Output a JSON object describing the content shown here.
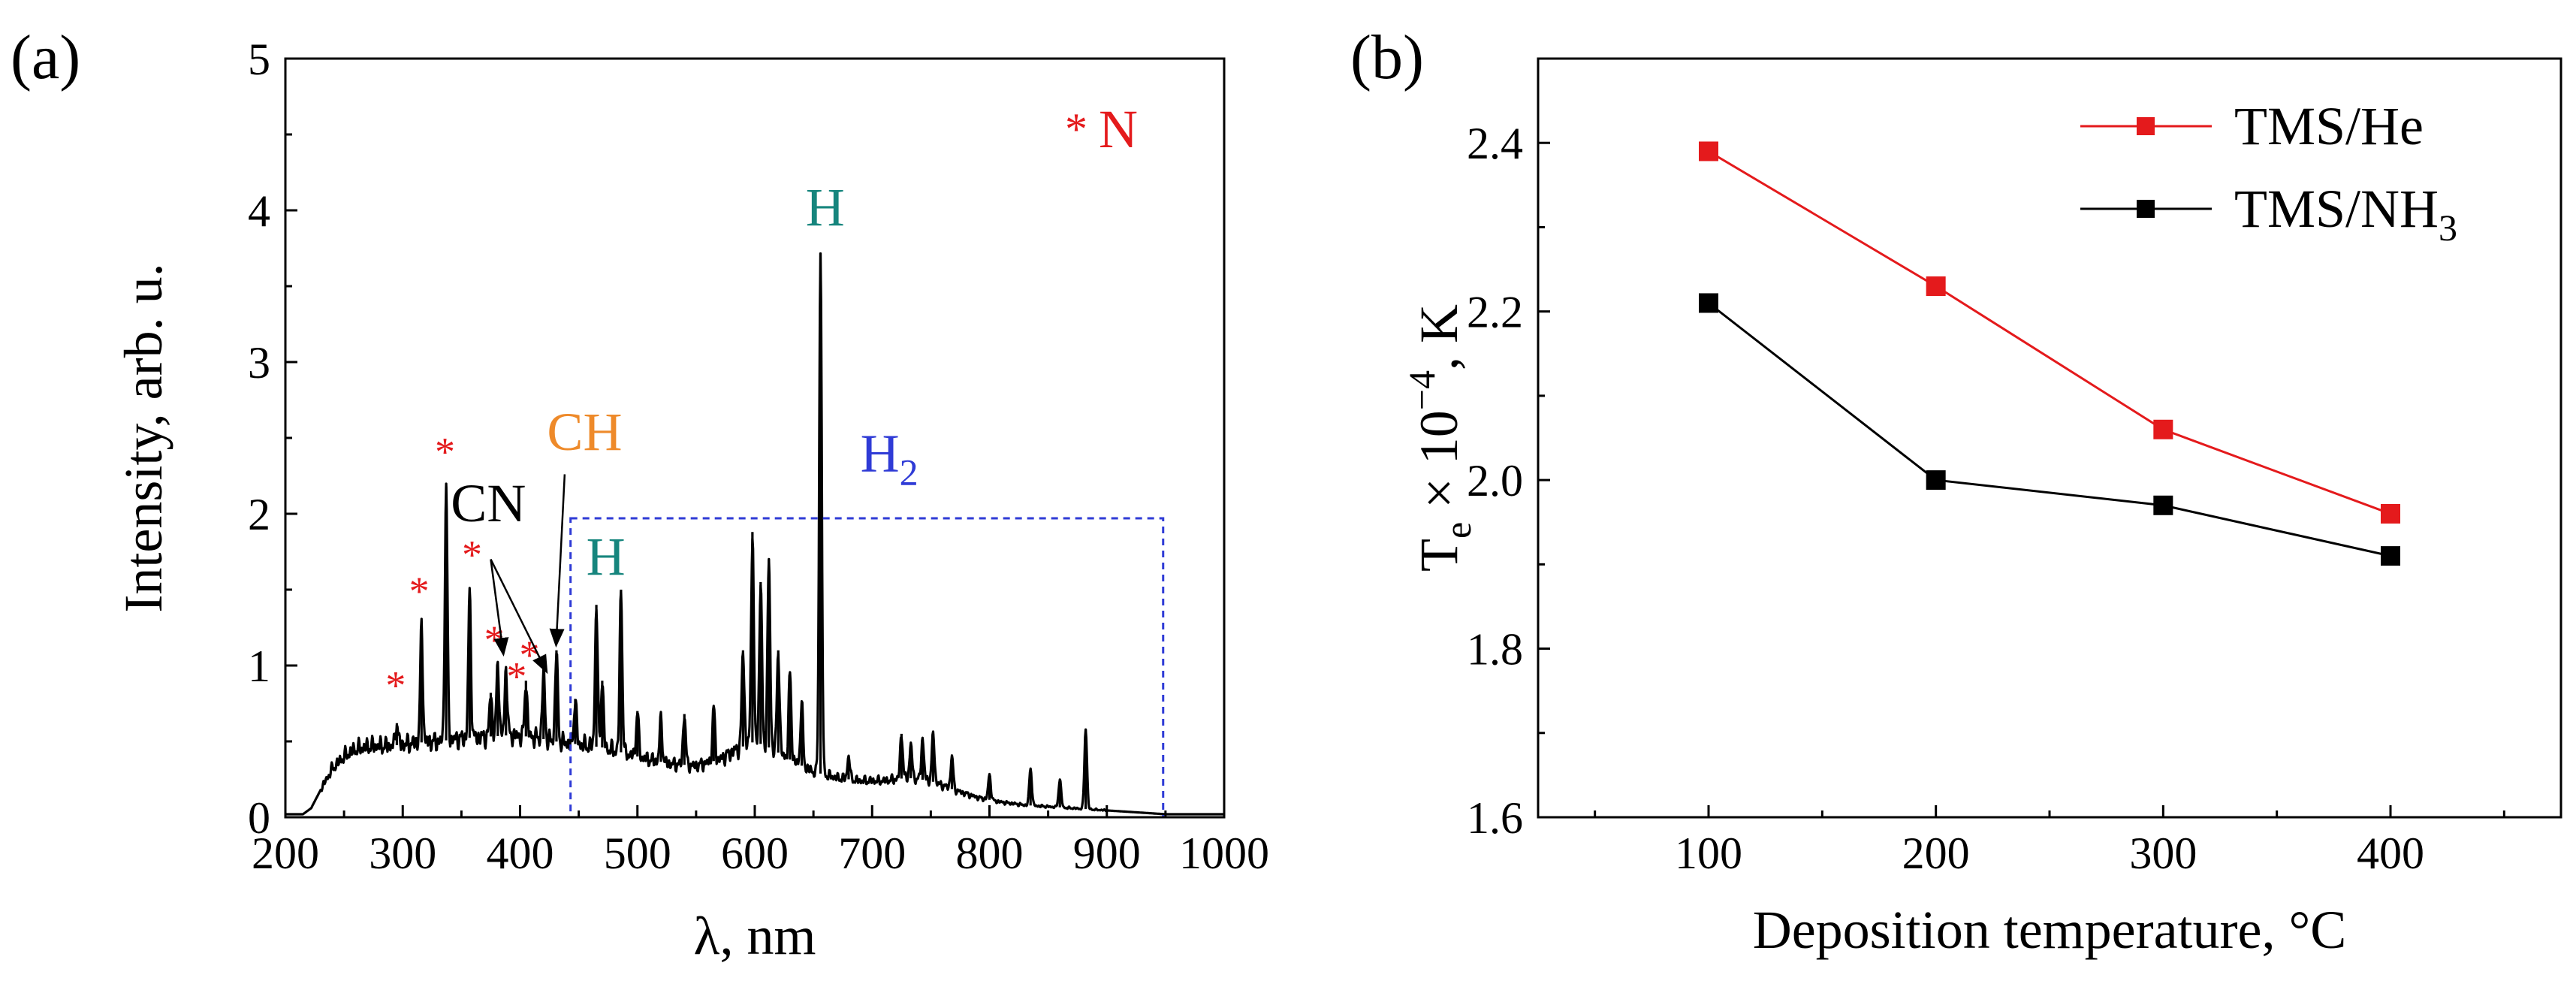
{
  "chart_data": [
    {
      "panel": "(a)",
      "type": "line",
      "xlabel": "λ, nm",
      "ylabel": "Intensity, arb. u.",
      "xlim": [
        200,
        1000
      ],
      "ylim": [
        0,
        5
      ],
      "xticks": [
        "200",
        "300",
        "400",
        "500",
        "600",
        "700",
        "800",
        "900",
        "1000"
      ],
      "yticks": [
        "0",
        "1",
        "2",
        "3",
        "4",
        "5"
      ],
      "legend_note": {
        "star": "*",
        "species": "N"
      },
      "region_box": {
        "x_range": [
          443,
          948
        ],
        "y_range": [
          0,
          1.97
        ],
        "label": "H",
        "label_sub": "2"
      },
      "baseline": [
        [
          200,
          0.02
        ],
        [
          215,
          0.02
        ],
        [
          222,
          0.06
        ],
        [
          230,
          0.18
        ],
        [
          240,
          0.32
        ],
        [
          250,
          0.4
        ],
        [
          260,
          0.45
        ],
        [
          275,
          0.47
        ],
        [
          290,
          0.47
        ],
        [
          310,
          0.49
        ],
        [
          330,
          0.5
        ],
        [
          350,
          0.52
        ],
        [
          370,
          0.53
        ],
        [
          390,
          0.54
        ],
        [
          410,
          0.53
        ],
        [
          430,
          0.5
        ],
        [
          450,
          0.48
        ],
        [
          470,
          0.46
        ],
        [
          490,
          0.42
        ],
        [
          510,
          0.38
        ],
        [
          530,
          0.35
        ],
        [
          550,
          0.34
        ],
        [
          570,
          0.38
        ],
        [
          585,
          0.45
        ],
        [
          600,
          0.5
        ],
        [
          615,
          0.45
        ],
        [
          630,
          0.38
        ],
        [
          650,
          0.3
        ],
        [
          670,
          0.26
        ],
        [
          690,
          0.24
        ],
        [
          710,
          0.24
        ],
        [
          730,
          0.26
        ],
        [
          750,
          0.24
        ],
        [
          770,
          0.18
        ],
        [
          790,
          0.13
        ],
        [
          810,
          0.1
        ],
        [
          830,
          0.08
        ],
        [
          850,
          0.07
        ],
        [
          870,
          0.06
        ],
        [
          890,
          0.05
        ],
        [
          910,
          0.04
        ],
        [
          930,
          0.03
        ],
        [
          950,
          0.02
        ],
        [
          1000,
          0.02
        ]
      ],
      "peaks": [
        [
          295,
          0.62
        ],
        [
          316,
          1.25
        ],
        [
          337,
          2.18
        ],
        [
          357,
          1.48
        ],
        [
          375,
          0.82
        ],
        [
          381,
          1.02
        ],
        [
          388,
          0.98
        ],
        [
          405,
          0.9
        ],
        [
          420,
          0.96
        ],
        [
          431,
          1.1
        ],
        [
          447,
          0.78
        ],
        [
          465,
          1.4
        ],
        [
          470,
          0.9
        ],
        [
          486,
          1.5
        ],
        [
          500,
          0.7
        ],
        [
          520,
          0.65
        ],
        [
          540,
          0.68
        ],
        [
          565,
          0.72
        ],
        [
          590,
          1.1
        ],
        [
          598,
          1.88
        ],
        [
          605,
          1.55
        ],
        [
          612,
          1.7
        ],
        [
          620,
          1.1
        ],
        [
          630,
          0.95
        ],
        [
          640,
          0.75
        ],
        [
          656,
          3.72
        ],
        [
          680,
          0.4
        ],
        [
          725,
          0.55
        ],
        [
          733,
          0.48
        ],
        [
          743,
          0.52
        ],
        [
          752,
          0.55
        ],
        [
          768,
          0.4
        ],
        [
          800,
          0.28
        ],
        [
          835,
          0.32
        ],
        [
          860,
          0.25
        ],
        [
          882,
          0.58
        ]
      ],
      "annotations": [
        {
          "text": "*",
          "color": "#e41a1c",
          "x": 294,
          "y": 0.78
        },
        {
          "text": "*",
          "color": "#e41a1c",
          "x": 314,
          "y": 1.4
        },
        {
          "text": "*",
          "color": "#e41a1c",
          "x": 336,
          "y": 2.32
        },
        {
          "text": "*",
          "color": "#e41a1c",
          "x": 359,
          "y": 1.64
        },
        {
          "text": "*",
          "color": "#e41a1c",
          "x": 378,
          "y": 1.08
        },
        {
          "text": "*",
          "color": "#e41a1c",
          "x": 397,
          "y": 0.84
        },
        {
          "text": "*",
          "color": "#e41a1c",
          "x": 408,
          "y": 0.98
        },
        {
          "text": "CN",
          "color": "#000000",
          "x": 373,
          "y": 1.95
        },
        {
          "text": "CH",
          "color": "#ee8a2a",
          "x": 455,
          "y": 2.42
        },
        {
          "text": "H",
          "color": "#16857d",
          "x": 473,
          "y": 1.6
        },
        {
          "text": "H",
          "color": "#16857d",
          "x": 660,
          "y": 3.9
        }
      ],
      "arrows": [
        {
          "from": [
            375,
            1.7
          ],
          "to": [
            385,
            1.12
          ]
        },
        {
          "from": [
            375,
            1.7
          ],
          "to": [
            420,
            1.0
          ]
        },
        {
          "from": [
            438,
            2.26
          ],
          "to": [
            431,
            1.18
          ]
        }
      ],
      "colors": {
        "line": "#000000",
        "box": "#2f3bd6",
        "star": "#e41a1c",
        "ch": "#ee8a2a",
        "h": "#16857d"
      }
    },
    {
      "panel": "(b)",
      "type": "line",
      "xlabel": "Deposition temperature, °C",
      "ylabel_main": "T",
      "ylabel_sub": "e",
      "ylabel_mid": " × 10",
      "ylabel_sup": "−4",
      "ylabel_end": ", K",
      "xlim": [
        25,
        475
      ],
      "ylim": [
        1.6,
        2.5
      ],
      "xticks": [
        "100",
        "200",
        "300",
        "400"
      ],
      "yticks": [
        "1.6",
        "1.8",
        "2.0",
        "2.2",
        "2.4"
      ],
      "x": [
        100,
        200,
        300,
        400
      ],
      "series": [
        {
          "name": "TMS/He",
          "color": "#e41a1c",
          "values": [
            2.39,
            2.23,
            2.06,
            1.96
          ]
        },
        {
          "name": "TMS/NH",
          "name_sub": "3",
          "color": "#000000",
          "values": [
            2.21,
            2.0,
            1.97,
            1.91
          ]
        }
      ],
      "legend_position": "top-right"
    }
  ]
}
